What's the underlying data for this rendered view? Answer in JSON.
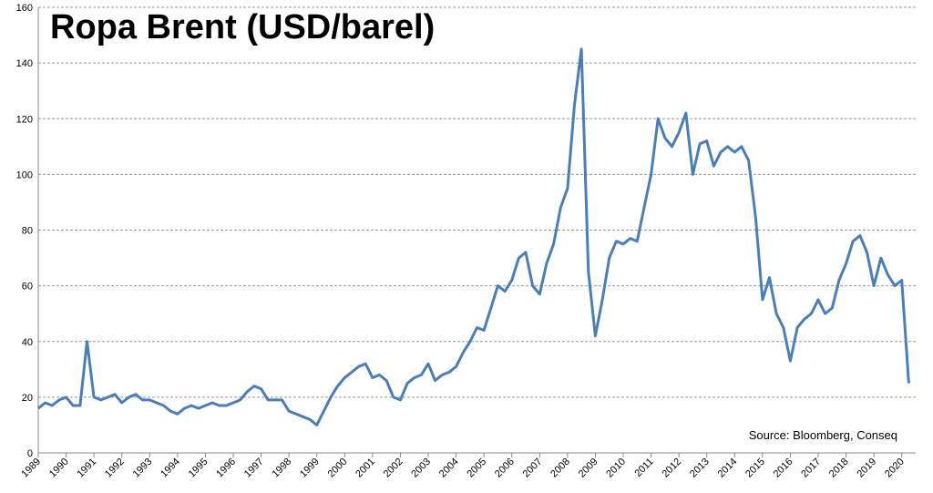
{
  "chart_data": {
    "type": "line",
    "title": "Ropa Brent (USD/barel)",
    "source": "Source: Bloomberg, Conseq",
    "color": "#4a7ebb",
    "grid": true,
    "x": [
      1989,
      1989.25,
      1989.5,
      1989.75,
      1990,
      1990.25,
      1990.5,
      1990.75,
      1991,
      1991.25,
      1991.5,
      1991.75,
      1992,
      1992.25,
      1992.5,
      1992.75,
      1993,
      1993.25,
      1993.5,
      1993.75,
      1994,
      1994.25,
      1994.5,
      1994.75,
      1995,
      1995.25,
      1995.5,
      1995.75,
      1996,
      1996.25,
      1996.5,
      1996.75,
      1997,
      1997.25,
      1997.5,
      1997.75,
      1998,
      1998.25,
      1998.5,
      1998.75,
      1999,
      1999.25,
      1999.5,
      1999.75,
      2000,
      2000.25,
      2000.5,
      2000.75,
      2001,
      2001.25,
      2001.5,
      2001.75,
      2002,
      2002.25,
      2002.5,
      2002.75,
      2003,
      2003.25,
      2003.5,
      2003.75,
      2004,
      2004.25,
      2004.5,
      2004.75,
      2005,
      2005.25,
      2005.5,
      2005.75,
      2006,
      2006.25,
      2006.5,
      2006.75,
      2007,
      2007.25,
      2007.5,
      2007.75,
      2008,
      2008.25,
      2008.5,
      2008.75,
      2009,
      2009.25,
      2009.5,
      2009.75,
      2010,
      2010.25,
      2010.5,
      2010.75,
      2011,
      2011.25,
      2011.5,
      2011.75,
      2012,
      2012.25,
      2012.5,
      2012.75,
      2013,
      2013.25,
      2013.5,
      2013.75,
      2014,
      2014.25,
      2014.5,
      2014.75,
      2015,
      2015.25,
      2015.5,
      2015.75,
      2016,
      2016.25,
      2016.5,
      2016.75,
      2017,
      2017.25,
      2017.5,
      2017.75,
      2018,
      2018.25,
      2018.5,
      2018.75,
      2019,
      2019.25,
      2019.5,
      2019.75,
      2020,
      2020.25
    ],
    "values": [
      16,
      18,
      17,
      19,
      20,
      17,
      17,
      40,
      20,
      19,
      20,
      21,
      18,
      20,
      21,
      19,
      19,
      18,
      17,
      15,
      14,
      16,
      17,
      16,
      17,
      18,
      17,
      17,
      18,
      19,
      22,
      24,
      23,
      19,
      19,
      19,
      15,
      14,
      13,
      12,
      10,
      15,
      20,
      24,
      27,
      29,
      31,
      32,
      27,
      28,
      26,
      20,
      19,
      25,
      27,
      28,
      32,
      26,
      28,
      29,
      31,
      36,
      40,
      45,
      44,
      52,
      60,
      58,
      62,
      70,
      72,
      60,
      57,
      68,
      75,
      88,
      95,
      125,
      145,
      65,
      42,
      55,
      70,
      76,
      75,
      77,
      76,
      88,
      100,
      120,
      113,
      110,
      115,
      122,
      100,
      111,
      112,
      103,
      108,
      110,
      108,
      110,
      105,
      85,
      55,
      63,
      50,
      45,
      33,
      45,
      48,
      50,
      55,
      50,
      52,
      62,
      68,
      76,
      78,
      72,
      60,
      70,
      64,
      60,
      62,
      25
    ],
    "xlim": [
      1989,
      2020.5
    ],
    "xticks": [
      1989,
      1990,
      1991,
      1992,
      1993,
      1994,
      1995,
      1996,
      1997,
      1998,
      1999,
      2000,
      2001,
      2002,
      2003,
      2004,
      2005,
      2006,
      2007,
      2008,
      2009,
      2010,
      2011,
      2012,
      2013,
      2014,
      2015,
      2016,
      2017,
      2018,
      2019,
      2020
    ],
    "ylim": [
      0,
      160
    ],
    "yticks": [
      0,
      20,
      40,
      60,
      80,
      100,
      120,
      140,
      160
    ]
  }
}
